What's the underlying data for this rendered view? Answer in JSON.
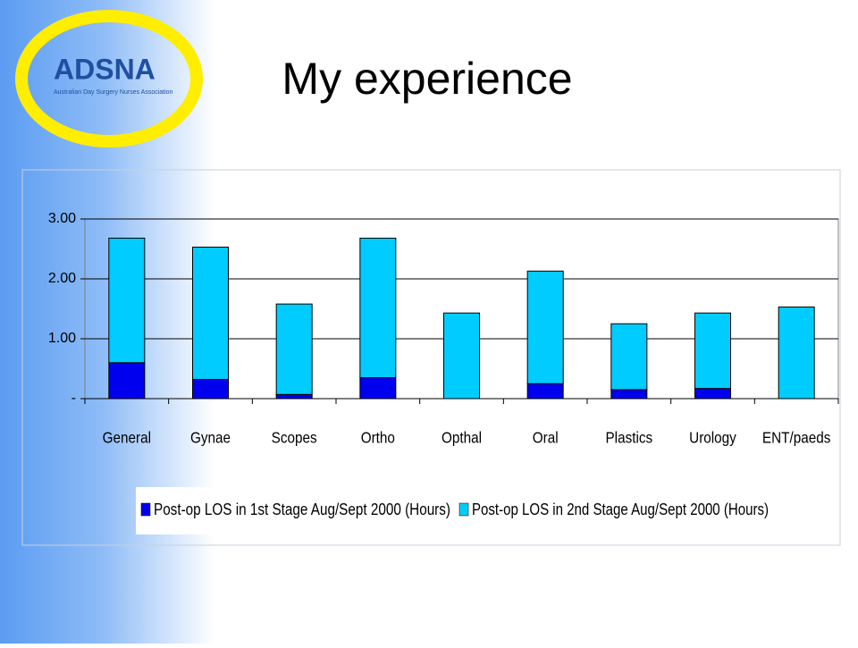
{
  "logo": {
    "name": "ADSNA",
    "subtitle": "Australian Day Surgery Nurses Association"
  },
  "chart_data": {
    "type": "stacked_bar",
    "title": "My experience",
    "categories": [
      "General",
      "Gynae",
      "Scopes",
      "Ortho",
      "Opthal",
      "Oral",
      "Plastics",
      "Urology",
      "ENT/paeds"
    ],
    "series": [
      {
        "name": "Post-op LOS in 1st Stage Aug/Sept 2000 (Hours)",
        "color": "#0000ee",
        "values": [
          0.6,
          0.32,
          0.07,
          0.35,
          0,
          0.25,
          0.15,
          0.17,
          0
        ]
      },
      {
        "name": "Post-op LOS in 2nd Stage Aug/Sept 2000 (Hours)",
        "color": "#00ccff",
        "values": [
          2.08,
          2.21,
          1.51,
          2.33,
          1.43,
          1.88,
          1.1,
          1.26,
          1.53
        ]
      }
    ],
    "ylim": [
      0,
      3
    ],
    "yticks": [
      {
        "value": 0,
        "label": "-"
      },
      {
        "value": 1,
        "label": "1.00"
      },
      {
        "value": 2,
        "label": "2.00"
      },
      {
        "value": 3,
        "label": "3.00"
      }
    ],
    "grid": true,
    "legend": "bottom"
  }
}
